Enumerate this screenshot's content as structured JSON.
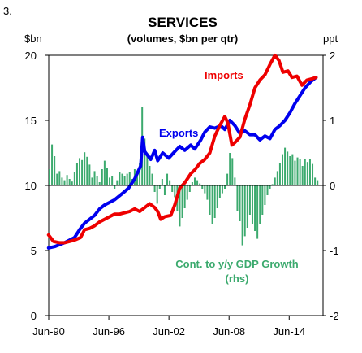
{
  "figure_number": "3.",
  "chart_data": {
    "type": "line",
    "title": "SERVICES",
    "subtitle": "(volumes, $bn per qtr)",
    "left_axis": {
      "unit": "$bn",
      "range": [
        0,
        20
      ],
      "ticks": [
        "0",
        "5",
        "10",
        "15",
        "20"
      ]
    },
    "right_axis": {
      "unit": "ppt",
      "range": [
        -2,
        2
      ],
      "ticks": [
        "-2",
        "-1",
        "0",
        "1",
        "2"
      ]
    },
    "x_axis": {
      "range": [
        1990.42,
        2017.8
      ],
      "tick_labels": [
        "Jun-90",
        "Jun-96",
        "Jun-02",
        "Jun-08",
        "Jun-14"
      ],
      "tick_years": [
        1990.42,
        1996.42,
        2002.42,
        2008.42,
        2014.42
      ]
    },
    "grid": false,
    "colors": {
      "exports": "#0000ee",
      "imports": "#ee0000",
      "contribution": "#3caa6e"
    },
    "annotations": {
      "exports": "Exports",
      "imports": "Imports",
      "contribution_line1": "Cont. to y/y GDP Growth",
      "contribution_line2": "(rhs)"
    },
    "series": [
      {
        "name": "Exports",
        "axis": "left",
        "kind": "line",
        "points": [
          [
            1990.4,
            5.2
          ],
          [
            1991.0,
            5.3
          ],
          [
            1992.0,
            5.6
          ],
          [
            1993.0,
            6.0
          ],
          [
            1993.5,
            6.6
          ],
          [
            1994.0,
            7.1
          ],
          [
            1995.0,
            7.7
          ],
          [
            1995.5,
            8.2
          ],
          [
            1996.0,
            8.5
          ],
          [
            1997.0,
            8.9
          ],
          [
            1997.8,
            9.4
          ],
          [
            1998.4,
            9.8
          ],
          [
            1999.0,
            10.5
          ],
          [
            1999.3,
            11.0
          ],
          [
            1999.6,
            11.5
          ],
          [
            1999.8,
            13.7
          ],
          [
            2000.0,
            12.6
          ],
          [
            2000.6,
            12.0
          ],
          [
            2001.0,
            12.7
          ],
          [
            2001.3,
            11.9
          ],
          [
            2001.8,
            12.5
          ],
          [
            2002.4,
            12.1
          ],
          [
            2003.0,
            12.6
          ],
          [
            2003.5,
            13.0
          ],
          [
            2004.0,
            12.7
          ],
          [
            2004.6,
            13.1
          ],
          [
            2005.0,
            12.8
          ],
          [
            2005.6,
            13.5
          ],
          [
            2006.0,
            14.1
          ],
          [
            2006.5,
            14.5
          ],
          [
            2007.0,
            14.4
          ],
          [
            2007.6,
            14.6
          ],
          [
            2008.0,
            14.3
          ],
          [
            2008.5,
            15.0
          ],
          [
            2009.0,
            14.6
          ],
          [
            2009.5,
            14.0
          ],
          [
            2010.0,
            14.2
          ],
          [
            2010.5,
            13.9
          ],
          [
            2011.0,
            13.9
          ],
          [
            2011.5,
            13.5
          ],
          [
            2012.0,
            13.8
          ],
          [
            2012.5,
            13.6
          ],
          [
            2013.0,
            14.3
          ],
          [
            2013.5,
            14.6
          ],
          [
            2014.0,
            15.0
          ],
          [
            2014.5,
            15.6
          ],
          [
            2015.0,
            16.3
          ],
          [
            2015.5,
            16.9
          ],
          [
            2016.0,
            17.5
          ],
          [
            2016.6,
            18.0
          ],
          [
            2017.1,
            18.3
          ]
        ]
      },
      {
        "name": "Imports",
        "axis": "left",
        "kind": "line",
        "points": [
          [
            1990.4,
            6.2
          ],
          [
            1990.9,
            5.7
          ],
          [
            1991.5,
            5.6
          ],
          [
            1992.0,
            5.6
          ],
          [
            1993.0,
            5.8
          ],
          [
            1993.6,
            6.0
          ],
          [
            1994.0,
            6.6
          ],
          [
            1994.5,
            6.7
          ],
          [
            1995.0,
            6.9
          ],
          [
            1995.5,
            7.2
          ],
          [
            1996.0,
            7.4
          ],
          [
            1996.5,
            7.6
          ],
          [
            1997.0,
            7.8
          ],
          [
            1997.5,
            7.8
          ],
          [
            1998.0,
            7.9
          ],
          [
            1998.5,
            8.0
          ],
          [
            1999.0,
            8.2
          ],
          [
            1999.5,
            8.0
          ],
          [
            2000.0,
            8.3
          ],
          [
            2000.5,
            8.6
          ],
          [
            2001.0,
            8.3
          ],
          [
            2001.3,
            8.0
          ],
          [
            2001.6,
            7.4
          ],
          [
            2002.0,
            7.6
          ],
          [
            2002.6,
            7.7
          ],
          [
            2003.0,
            8.5
          ],
          [
            2003.5,
            9.8
          ],
          [
            2004.0,
            10.2
          ],
          [
            2004.6,
            10.9
          ],
          [
            2005.0,
            11.2
          ],
          [
            2005.5,
            11.7
          ],
          [
            2006.0,
            12.0
          ],
          [
            2006.5,
            12.5
          ],
          [
            2007.0,
            13.8
          ],
          [
            2007.5,
            14.6
          ],
          [
            2008.0,
            15.3
          ],
          [
            2008.3,
            14.8
          ],
          [
            2008.7,
            13.1
          ],
          [
            2009.0,
            13.3
          ],
          [
            2009.5,
            13.7
          ],
          [
            2010.0,
            15.1
          ],
          [
            2010.5,
            16.2
          ],
          [
            2011.0,
            17.5
          ],
          [
            2011.5,
            18.1
          ],
          [
            2012.0,
            18.5
          ],
          [
            2012.5,
            19.3
          ],
          [
            2013.0,
            20.0
          ],
          [
            2013.4,
            19.6
          ],
          [
            2013.8,
            18.7
          ],
          [
            2014.3,
            18.8
          ],
          [
            2014.7,
            18.3
          ],
          [
            2015.2,
            18.4
          ],
          [
            2015.7,
            17.7
          ],
          [
            2016.2,
            18.1
          ],
          [
            2016.7,
            18.2
          ],
          [
            2017.1,
            18.3
          ]
        ]
      },
      {
        "name": "Cont. to y/y GDP Growth (rhs)",
        "axis": "right",
        "kind": "bar",
        "points": [
          [
            1990.5,
            0.25
          ],
          [
            1990.75,
            0.63
          ],
          [
            1991.0,
            0.45
          ],
          [
            1991.25,
            0.18
          ],
          [
            1991.5,
            0.22
          ],
          [
            1991.75,
            0.12
          ],
          [
            1992.0,
            0.08
          ],
          [
            1992.25,
            0.16
          ],
          [
            1992.5,
            0.1
          ],
          [
            1992.75,
            0.06
          ],
          [
            1993.0,
            0.2
          ],
          [
            1993.25,
            0.35
          ],
          [
            1993.5,
            0.42
          ],
          [
            1993.75,
            0.39
          ],
          [
            1994.0,
            0.51
          ],
          [
            1994.25,
            0.44
          ],
          [
            1994.5,
            0.32
          ],
          [
            1994.75,
            0.12
          ],
          [
            1995.0,
            0.22
          ],
          [
            1995.25,
            0.15
          ],
          [
            1995.5,
            0.05
          ],
          [
            1995.75,
            0.25
          ],
          [
            1996.0,
            0.38
          ],
          [
            1996.25,
            0.27
          ],
          [
            1996.5,
            0.12
          ],
          [
            1996.75,
            0.15
          ],
          [
            1997.0,
            -0.05
          ],
          [
            1997.25,
            0.08
          ],
          [
            1997.5,
            0.2
          ],
          [
            1997.75,
            0.18
          ],
          [
            1998.0,
            0.14
          ],
          [
            1998.25,
            0.18
          ],
          [
            1998.5,
            0.2
          ],
          [
            1998.75,
            0.1
          ],
          [
            1999.0,
            0.25
          ],
          [
            1999.25,
            0.2
          ],
          [
            1999.5,
            0.35
          ],
          [
            1999.75,
            1.2
          ],
          [
            2000.0,
            0.72
          ],
          [
            2000.25,
            0.45
          ],
          [
            2000.5,
            0.3
          ],
          [
            2000.75,
            0.18
          ],
          [
            2001.0,
            -0.1
          ],
          [
            2001.25,
            -0.28
          ],
          [
            2001.5,
            -0.05
          ],
          [
            2001.75,
            0.1
          ],
          [
            2002.0,
            -0.15
          ],
          [
            2002.25,
            0.18
          ],
          [
            2002.5,
            0.08
          ],
          [
            2002.75,
            -0.1
          ],
          [
            2003.0,
            -0.18
          ],
          [
            2003.25,
            -0.4
          ],
          [
            2003.5,
            -0.63
          ],
          [
            2003.75,
            -0.5
          ],
          [
            2004.0,
            -0.35
          ],
          [
            2004.25,
            -0.22
          ],
          [
            2004.5,
            -0.1
          ],
          [
            2004.75,
            0.05
          ],
          [
            2005.0,
            0.12
          ],
          [
            2005.25,
            0.08
          ],
          [
            2005.5,
            0.03
          ],
          [
            2005.75,
            -0.05
          ],
          [
            2006.0,
            -0.12
          ],
          [
            2006.25,
            -0.22
          ],
          [
            2006.5,
            -0.45
          ],
          [
            2006.75,
            -0.6
          ],
          [
            2007.0,
            -0.5
          ],
          [
            2007.25,
            -0.35
          ],
          [
            2007.5,
            -0.2
          ],
          [
            2007.75,
            -0.12
          ],
          [
            2008.0,
            -0.05
          ],
          [
            2008.25,
            0.18
          ],
          [
            2008.5,
            0.5
          ],
          [
            2008.75,
            0.42
          ],
          [
            2009.0,
            0.12
          ],
          [
            2009.25,
            -0.4
          ],
          [
            2009.5,
            -0.55
          ],
          [
            2009.75,
            -0.92
          ],
          [
            2010.0,
            -0.78
          ],
          [
            2010.25,
            -0.65
          ],
          [
            2010.5,
            -0.45
          ],
          [
            2010.75,
            -0.6
          ],
          [
            2011.0,
            -0.7
          ],
          [
            2011.25,
            -0.82
          ],
          [
            2011.5,
            -0.6
          ],
          [
            2011.75,
            -0.45
          ],
          [
            2012.0,
            -0.3
          ],
          [
            2012.25,
            -0.15
          ],
          [
            2012.5,
            -0.05
          ],
          [
            2012.75,
            0.02
          ],
          [
            2013.0,
            0.12
          ],
          [
            2013.25,
            0.22
          ],
          [
            2013.5,
            0.35
          ],
          [
            2013.75,
            0.48
          ],
          [
            2014.0,
            0.58
          ],
          [
            2014.25,
            0.52
          ],
          [
            2014.5,
            0.45
          ],
          [
            2014.75,
            0.48
          ],
          [
            2015.0,
            0.38
          ],
          [
            2015.25,
            0.43
          ],
          [
            2015.5,
            0.4
          ],
          [
            2015.75,
            0.3
          ],
          [
            2016.0,
            0.4
          ],
          [
            2016.25,
            0.36
          ],
          [
            2016.5,
            0.4
          ],
          [
            2016.75,
            0.33
          ],
          [
            2017.0,
            0.12
          ],
          [
            2017.25,
            0.08
          ]
        ]
      }
    ]
  }
}
